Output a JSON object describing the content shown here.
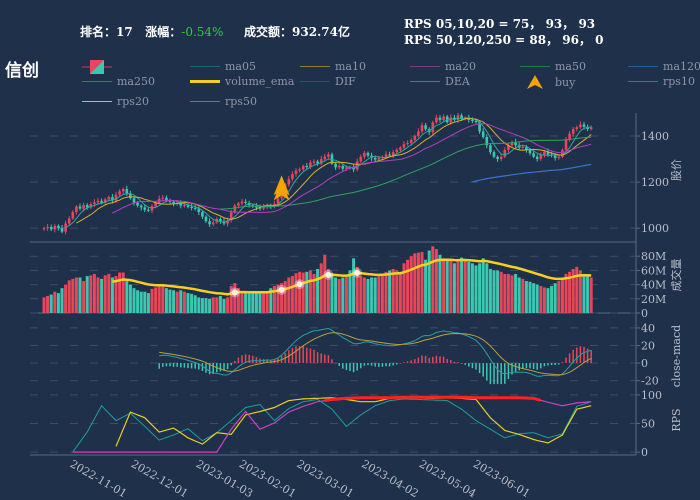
{
  "header": {
    "rank_label": "排名：",
    "rank_value": "17",
    "change_label": "涨幅：",
    "change_value": "-0.54%",
    "turnover_label": "成交额：",
    "turnover_value": "932.74亿",
    "rps_line1": "RPS 05,10,20 = 75， 93， 93",
    "rps_line2": "RPS 50,120,250 = 88， 96， 0"
  },
  "title": "信创",
  "legend": [
    {
      "label": "",
      "icon": "candlestick-icon"
    },
    {
      "label": "ma05",
      "color": "#1f6470"
    },
    {
      "label": "ma10",
      "color": "#8c7c36"
    },
    {
      "label": "ma20",
      "color": "#7c3a86"
    },
    {
      "label": "ma50",
      "color": "#207a52"
    },
    {
      "label": "ma120",
      "color": "#2a5c96"
    },
    {
      "label": "ma250",
      "color": "#7a5a6a"
    },
    {
      "label": "volume_ema",
      "color": "#f0d020"
    },
    {
      "label": "DIF",
      "color": "#1a5a66"
    },
    {
      "label": "DEA",
      "color": "#7a7034"
    },
    {
      "label": "buy",
      "icon": "buy-arrow-icon",
      "color": "#f5a300"
    },
    {
      "label": "rps10",
      "color": "#1a8a8a"
    },
    {
      "label": "rps20",
      "color": "#d4c020"
    },
    {
      "label": "rps50",
      "color": "#c040c0"
    }
  ],
  "colors": {
    "up": "#e8465a",
    "down": "#3cc8b0",
    "ma05": "#2aa8a0",
    "ma10": "#d8b030",
    "ma20": "#b040c0",
    "ma50": "#30a060",
    "ma120": "#3a72d0",
    "volume_ema": "#f5d020",
    "dif": "#2aa0a0",
    "dea": "#b8a040",
    "rps10": "#1aa0a0",
    "rps20": "#e8d020",
    "rps50": "#d040c0",
    "rps_high": "#ff2020",
    "buy": "#f5a300"
  },
  "chart_data": {
    "type": "candlestick",
    "panels": [
      {
        "name": "股价",
        "ticks": [
          "1000",
          "1200",
          "1400"
        ],
        "ylim": [
          940,
          1500
        ]
      },
      {
        "name": "成交量",
        "ticks": [
          "0",
          "20M",
          "40M",
          "60M",
          "80M"
        ],
        "ylim": [
          0,
          100
        ]
      },
      {
        "name": "close-macd",
        "ticks": [
          "-20",
          "0",
          "20",
          "40"
        ],
        "ylim": [
          -25,
          57
        ]
      },
      {
        "name": "RPS",
        "ticks": [
          "0",
          "50",
          "100"
        ],
        "ylim": [
          -5,
          105
        ]
      }
    ],
    "x_ticks": [
      "2022-11-01",
      "2022-12-01",
      "2023-01-03",
      "2023-02-01",
      "2023-03-01",
      "2023-04-02",
      "2023-05-04",
      "2023-06-01"
    ],
    "close": [
      1000,
      1005,
      995,
      1010,
      1000,
      985,
      1020,
      1042,
      1070,
      1094,
      1085,
      1100,
      1090,
      1105,
      1112,
      1119,
      1110,
      1125,
      1135,
      1120,
      1145,
      1160,
      1170,
      1150,
      1130,
      1110,
      1098,
      1090,
      1080,
      1077,
      1095,
      1110,
      1128,
      1132,
      1120,
      1115,
      1105,
      1110,
      1098,
      1100,
      1092,
      1088,
      1085,
      1070,
      1050,
      1030,
      1017,
      1025,
      1040,
      1030,
      1020,
      1034,
      1070,
      1098,
      1108,
      1115,
      1110,
      1100,
      1095,
      1090,
      1085,
      1095,
      1100,
      1092,
      1106,
      1130,
      1160,
      1190,
      1213,
      1235,
      1250,
      1255,
      1270,
      1265,
      1285,
      1290,
      1280,
      1300,
      1310,
      1320,
      1280,
      1264,
      1270,
      1258,
      1264,
      1262,
      1255,
      1290,
      1310,
      1327,
      1315,
      1305,
      1298,
      1305,
      1310,
      1320,
      1315,
      1330,
      1340,
      1350,
      1365,
      1370,
      1383,
      1400,
      1420,
      1447,
      1430,
      1417,
      1460,
      1480,
      1470,
      1485,
      1460,
      1480,
      1470,
      1490,
      1475,
      1480,
      1470,
      1465,
      1460,
      1420,
      1396,
      1360,
      1330,
      1310,
      1300,
      1310,
      1340,
      1360,
      1374,
      1360,
      1350,
      1353,
      1340,
      1325,
      1310,
      1300,
      1320,
      1332,
      1320,
      1315,
      1305,
      1310,
      1340,
      1383,
      1410,
      1430,
      1438,
      1450,
      1440,
      1430,
      1438
    ],
    "volume_million": [
      22,
      24,
      26,
      30,
      28,
      35,
      40,
      46,
      48,
      50,
      50,
      45,
      52,
      53,
      55,
      50,
      48,
      53,
      55,
      50,
      52,
      57,
      57,
      45,
      40,
      35,
      32,
      30,
      30,
      28,
      34,
      36,
      38,
      38,
      35,
      33,
      32,
      30,
      32,
      30,
      28,
      27,
      25,
      22,
      21,
      21,
      20,
      22,
      22,
      24,
      20,
      22,
      38,
      42,
      35,
      29,
      30,
      28,
      29,
      28,
      30,
      29,
      30,
      35,
      38,
      40,
      42,
      45,
      50,
      52,
      56,
      58,
      57,
      58,
      60,
      55,
      62,
      70,
      82,
      62,
      56,
      50,
      48,
      50,
      52,
      60,
      77,
      65,
      52,
      50,
      48,
      50,
      50,
      52,
      55,
      58,
      60,
      62,
      60,
      58,
      70,
      75,
      80,
      84,
      85,
      86,
      75,
      88,
      94,
      90,
      82,
      77,
      76,
      74,
      70,
      74,
      78,
      74,
      72,
      70,
      67,
      70,
      77,
      70,
      62,
      60,
      60,
      58,
      55,
      55,
      53,
      55,
      50,
      48,
      45,
      44,
      42,
      40,
      38,
      36,
      35,
      38,
      42,
      45,
      50,
      55,
      58,
      62,
      65,
      60,
      55,
      52,
      50
    ],
    "rps10_every4": [
      null,
      null,
      0,
      35,
      81,
      55,
      68,
      45,
      21,
      30,
      41,
      20,
      34,
      55,
      78,
      83,
      55,
      76,
      88,
      92,
      75,
      45,
      65,
      81,
      90,
      93,
      92,
      91,
      90,
      75,
      55,
      40,
      25,
      32,
      34,
      25,
      32,
      80,
      88
    ],
    "rps20_every4": [
      null,
      null,
      null,
      null,
      null,
      10,
      70,
      60,
      35,
      42,
      25,
      14,
      34,
      31,
      65,
      71,
      78,
      90,
      93,
      94,
      95,
      92,
      88,
      88,
      94,
      95,
      95,
      94,
      95,
      94,
      92,
      60,
      38,
      31,
      22,
      16,
      30,
      75,
      81
    ],
    "rps50_every4": [
      null,
      null,
      0,
      0,
      0,
      0,
      0,
      0,
      0,
      0,
      0,
      0,
      0,
      40,
      71,
      40,
      51,
      70,
      80,
      88,
      92,
      94,
      95,
      95,
      95,
      96,
      96,
      96,
      96,
      96,
      95,
      95,
      95,
      95,
      94,
      87,
      81,
      86,
      88
    ],
    "buy_signal_index": [
      66
    ],
    "volume_signal_index": [
      53,
      66,
      71,
      79,
      87
    ]
  }
}
